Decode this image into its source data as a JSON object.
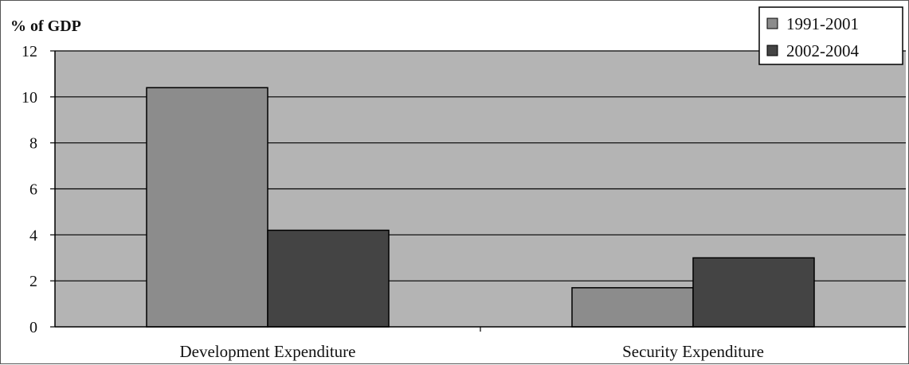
{
  "chart_data": {
    "type": "bar",
    "ylabel": "% of GDP",
    "categories": [
      "Development Expenditure",
      "Security Expenditure"
    ],
    "series": [
      {
        "name": "1991-2001",
        "values": [
          10.4,
          1.7
        ],
        "color": "#8c8c8c"
      },
      {
        "name": "2002-2004",
        "values": [
          4.2,
          3.0
        ],
        "color": "#444444"
      }
    ],
    "ylim": [
      0,
      12
    ],
    "yticks": [
      "0",
      "2",
      "4",
      "6",
      "8",
      "10",
      "12"
    ],
    "grid": true,
    "legend_position": "top-right",
    "plot_background": "#b4b4b4"
  }
}
